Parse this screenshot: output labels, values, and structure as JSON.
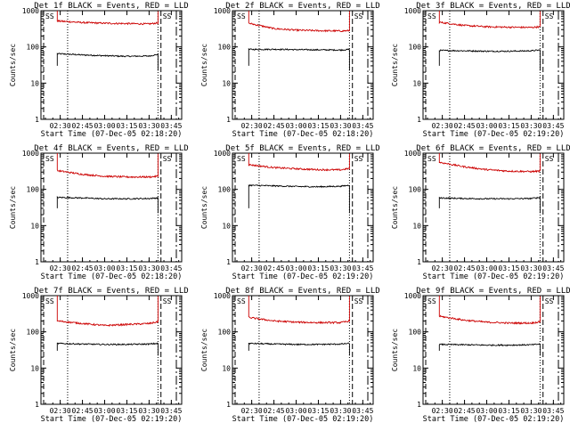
{
  "colors": {
    "events": "#000000",
    "lld": "#cc0000",
    "axis": "#000000"
  },
  "chart_data": [
    {
      "type": "line",
      "title": "Det 1f BLACK = Events, RED = LLD",
      "xlabel": "Start Time (07-Dec-05 02:18:20)",
      "ylabel": "Counts/sec",
      "yscale": "log",
      "ylim": [
        1,
        1000
      ],
      "x_ticks": [
        "02:30",
        "02:45",
        "03:00",
        "03:15",
        "03:30",
        "03:45"
      ],
      "y_ticks": [
        "1",
        "10",
        "100",
        "1000"
      ],
      "marker_label": "SS",
      "x": [
        "02:28",
        "02:45",
        "03:00",
        "03:15",
        "03:30",
        "03:36"
      ],
      "series": [
        {
          "values": [
            65,
            60,
            57,
            55,
            56,
            62
          ]
        },
        {
          "values": [
            520,
            470,
            450,
            440,
            430,
            460
          ]
        }
      ]
    },
    {
      "type": "line",
      "title": "Det 2f BLACK = Events, RED = LLD",
      "xlabel": "Start Time (07-Dec-05 02:18:20)",
      "ylabel": "Counts/sec",
      "yscale": "log",
      "ylim": [
        1,
        1000
      ],
      "x_ticks": [
        "02:30",
        "02:45",
        "03:00",
        "03:15",
        "03:30",
        "03:45"
      ],
      "y_ticks": [
        "1",
        "10",
        "100",
        "1000"
      ],
      "marker_label": "SS",
      "x": [
        "02:28",
        "02:45",
        "03:00",
        "03:15",
        "03:30",
        "03:36"
      ],
      "series": [
        {
          "values": [
            85,
            86,
            84,
            83,
            82,
            85
          ]
        },
        {
          "values": [
            450,
            320,
            290,
            280,
            275,
            280
          ]
        }
      ]
    },
    {
      "type": "line",
      "title": "Det 3f BLACK = Events, RED = LLD",
      "xlabel": "Start Time (07-Dec-05 02:19:20)",
      "ylabel": "Counts/sec",
      "yscale": "log",
      "ylim": [
        1,
        1000
      ],
      "x_ticks": [
        "02:30",
        "02:45",
        "03:00",
        "03:15",
        "03:30",
        "03:45"
      ],
      "y_ticks": [
        "1",
        "10",
        "100",
        "1000"
      ],
      "marker_label": "SS",
      "x": [
        "02:28",
        "02:45",
        "03:00",
        "03:15",
        "03:30",
        "03:36"
      ],
      "series": [
        {
          "values": [
            80,
            78,
            76,
            76,
            78,
            82
          ]
        },
        {
          "values": [
            480,
            390,
            360,
            350,
            345,
            360
          ]
        }
      ]
    },
    {
      "type": "line",
      "title": "Det 4f BLACK = Events, RED = LLD",
      "xlabel": "Start Time (07-Dec-05 02:18:20)",
      "ylabel": "Counts/sec",
      "yscale": "log",
      "ylim": [
        1,
        1000
      ],
      "x_ticks": [
        "02:30",
        "02:45",
        "03:00",
        "03:15",
        "03:30",
        "03:45"
      ],
      "y_ticks": [
        "1",
        "10",
        "100",
        "1000"
      ],
      "marker_label": "SS",
      "x": [
        "02:28",
        "02:45",
        "03:00",
        "03:15",
        "03:30",
        "03:36"
      ],
      "series": [
        {
          "values": [
            60,
            58,
            55,
            55,
            56,
            58
          ]
        },
        {
          "values": [
            330,
            260,
            230,
            220,
            220,
            230
          ]
        }
      ]
    },
    {
      "type": "line",
      "title": "Det 5f BLACK = Events, RED = LLD",
      "xlabel": "Start Time (07-Dec-05 02:19:20)",
      "ylabel": "Counts/sec",
      "yscale": "log",
      "ylim": [
        1,
        1000
      ],
      "x_ticks": [
        "02:30",
        "02:45",
        "03:00",
        "03:15",
        "03:30",
        "03:45"
      ],
      "y_ticks": [
        "1",
        "10",
        "100",
        "1000"
      ],
      "marker_label": "SS",
      "x": [
        "02:28",
        "02:45",
        "03:00",
        "03:15",
        "03:30",
        "03:36"
      ],
      "series": [
        {
          "values": [
            130,
            125,
            120,
            118,
            122,
            130
          ]
        },
        {
          "values": [
            480,
            400,
            370,
            350,
            345,
            380
          ]
        }
      ]
    },
    {
      "type": "line",
      "title": "Det 6f BLACK = Events, RED = LLD",
      "xlabel": "Start Time (07-Dec-05 02:19:20)",
      "ylabel": "Counts/sec",
      "yscale": "log",
      "ylim": [
        1,
        1000
      ],
      "x_ticks": [
        "02:30",
        "02:45",
        "03:00",
        "03:15",
        "03:30",
        "03:45"
      ],
      "y_ticks": [
        "1",
        "10",
        "100",
        "1000"
      ],
      "marker_label": "SS",
      "x": [
        "02:28",
        "02:45",
        "03:00",
        "03:15",
        "03:30",
        "03:36"
      ],
      "series": [
        {
          "values": [
            58,
            56,
            55,
            55,
            56,
            60
          ]
        },
        {
          "values": [
            560,
            420,
            350,
            320,
            310,
            320
          ]
        }
      ]
    },
    {
      "type": "line",
      "title": "Det 7f BLACK = Events, RED = LLD",
      "xlabel": "Start Time (07-Dec-05 02:19:20)",
      "ylabel": "Counts/sec",
      "yscale": "log",
      "ylim": [
        1,
        1000
      ],
      "x_ticks": [
        "02:30",
        "02:45",
        "03:00",
        "03:15",
        "03:30",
        "03:45"
      ],
      "y_ticks": [
        "1",
        "10",
        "100",
        "1000"
      ],
      "marker_label": "SS",
      "x": [
        "02:28",
        "02:45",
        "03:00",
        "03:15",
        "03:30",
        "03:36"
      ],
      "series": [
        {
          "values": [
            48,
            46,
            45,
            45,
            46,
            48
          ]
        },
        {
          "values": [
            200,
            170,
            150,
            160,
            170,
            190
          ]
        }
      ]
    },
    {
      "type": "line",
      "title": "Det 8f BLACK = Events, RED = LLD",
      "xlabel": "Start Time (07-Dec-05 02:19:20)",
      "ylabel": "Counts/sec",
      "yscale": "log",
      "ylim": [
        1,
        1000
      ],
      "x_ticks": [
        "02:30",
        "02:45",
        "03:00",
        "03:15",
        "03:30",
        "03:45"
      ],
      "y_ticks": [
        "1",
        "10",
        "100",
        "1000"
      ],
      "marker_label": "SS",
      "x": [
        "02:28",
        "02:45",
        "03:00",
        "03:15",
        "03:30",
        "03:36"
      ],
      "series": [
        {
          "values": [
            48,
            46,
            45,
            45,
            46,
            48
          ]
        },
        {
          "values": [
            250,
            200,
            185,
            180,
            180,
            200
          ]
        }
      ]
    },
    {
      "type": "line",
      "title": "Det 9f BLACK = Events, RED = LLD",
      "xlabel": "Start Time (07-Dec-05 02:19:20)",
      "ylabel": "Counts/sec",
      "yscale": "log",
      "ylim": [
        1,
        1000
      ],
      "x_ticks": [
        "02:30",
        "02:45",
        "03:00",
        "03:15",
        "03:30",
        "03:45"
      ],
      "y_ticks": [
        "1",
        "10",
        "100",
        "1000"
      ],
      "marker_label": "SS",
      "x": [
        "02:28",
        "02:45",
        "03:00",
        "03:15",
        "03:30",
        "03:36"
      ],
      "series": [
        {
          "values": [
            45,
            44,
            43,
            43,
            44,
            46
          ]
        },
        {
          "values": [
            270,
            210,
            185,
            175,
            175,
            190
          ]
        }
      ]
    }
  ]
}
